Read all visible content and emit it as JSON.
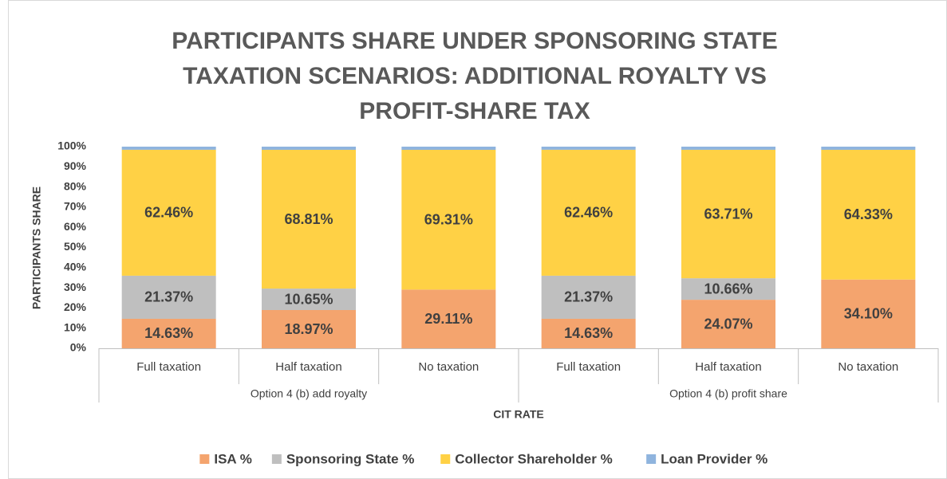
{
  "chart_data": {
    "type": "stacked_bar",
    "title": "PARTICIPANTS SHARE UNDER SPONSORING STATE TAXATION SCENARIOS: ADDITIONAL ROYALTY VS PROFIT-SHARE TAX",
    "y_label": "PARTICIPANTS SHARE",
    "x_label": "CIT RATE",
    "categories": [
      "Full taxation",
      "Half taxation",
      "No taxation",
      "Full taxation",
      "Half taxation",
      "No taxation"
    ],
    "groups": [
      "Option 4 (b) add royalty",
      "Option 4 (b) profit share"
    ],
    "series": [
      {
        "name": "ISA %",
        "color": "#f4a46e",
        "values": [
          14.63,
          18.97,
          29.11,
          14.63,
          24.07,
          34.1
        ],
        "value_labels": [
          "14.63%",
          "18.97%",
          "29.11%",
          "14.63%",
          "24.07%",
          "34.10%"
        ]
      },
      {
        "name": "Sponsoring State %",
        "color": "#bfbfbf",
        "values": [
          21.37,
          10.65,
          0,
          21.37,
          10.66,
          0
        ],
        "value_labels": [
          "21.37%",
          "10.65%",
          null,
          "21.37%",
          "10.66%",
          null
        ]
      },
      {
        "name": "Collector Shareholder %",
        "color": "#ffd145",
        "values": [
          62.46,
          68.81,
          69.31,
          62.46,
          63.71,
          64.33
        ],
        "value_labels": [
          "62.46%",
          "68.81%",
          "69.31%",
          "62.46%",
          "63.71%",
          "64.33%"
        ]
      },
      {
        "name": "Loan Provider %",
        "color": "#8fb4de",
        "values": [
          1.54,
          1.57,
          1.58,
          1.54,
          1.56,
          1.57
        ]
      }
    ],
    "ylim": [
      0,
      100
    ],
    "yticks": [
      {
        "value": 0,
        "label": "0%"
      },
      {
        "value": 10,
        "label": "10%"
      },
      {
        "value": 20,
        "label": "20%"
      },
      {
        "value": 30,
        "label": "30%"
      },
      {
        "value": 40,
        "label": "40%"
      },
      {
        "value": 50,
        "label": "50%"
      },
      {
        "value": 60,
        "label": "60%"
      },
      {
        "value": 70,
        "label": "70%"
      },
      {
        "value": 80,
        "label": "80%"
      },
      {
        "value": 90,
        "label": "90%"
      },
      {
        "value": 100,
        "label": "100%"
      }
    ],
    "legend": "bottom"
  }
}
